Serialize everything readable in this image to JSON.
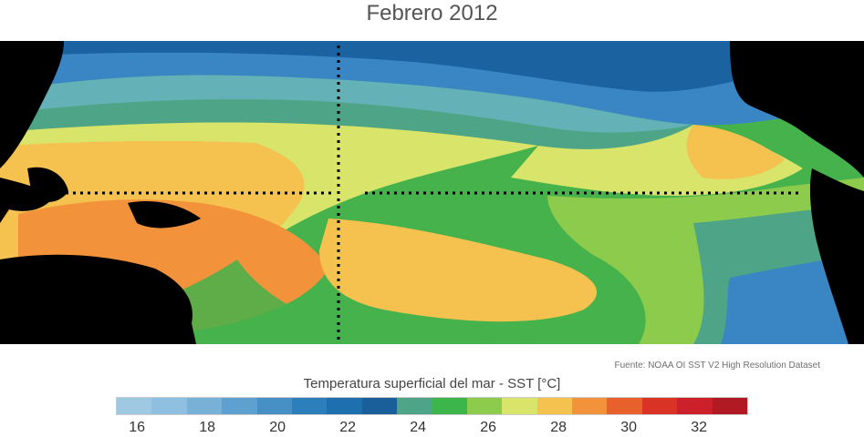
{
  "title": "Febrero 2012",
  "source": "Fuente: NOAA OI SST V2 High Resolution Dataset",
  "colorbar": {
    "title": "Temperatura superficial del mar - SST  [°C]",
    "ticks": [
      "16",
      "18",
      "20",
      "22",
      "24",
      "26",
      "28",
      "30",
      "32"
    ],
    "colors": [
      "#9fc9e3",
      "#8fbfe0",
      "#78b1d8",
      "#5ea0cf",
      "#4690c5",
      "#2d7fbb",
      "#1e6fae",
      "#1a5f9a",
      "#4ea486",
      "#3cb54a",
      "#8ccb4b",
      "#d8e46a",
      "#f5c14f",
      "#f2923a",
      "#e8612c",
      "#d93326",
      "#cb1f2a",
      "#b11a22"
    ]
  },
  "map": {
    "land_color": "#000000",
    "zone_colors": {
      "cold_deep": "#1a62a0",
      "cold": "#3a86c4",
      "cool": "#6fb0dc",
      "teal": "#4ea486",
      "green": "#45b24c",
      "lightgreen": "#8ccb4b",
      "yellow": "#d8e46a",
      "lightorange": "#f5c14f",
      "orange": "#f2923a"
    }
  }
}
